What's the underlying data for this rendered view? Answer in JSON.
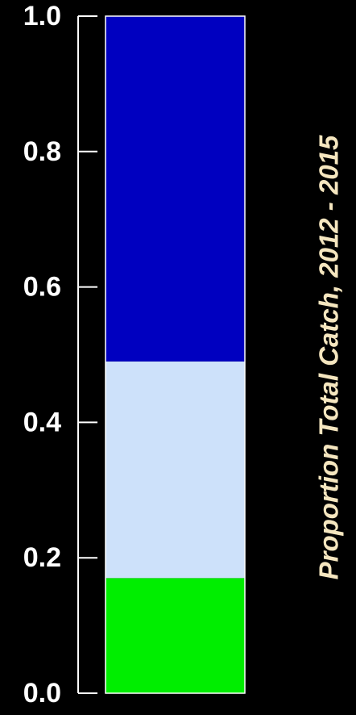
{
  "chart_data": {
    "type": "stacked-bar",
    "title": "",
    "xlabel": "",
    "ylabel": "Proportion Total Catch, 2012 - 2015",
    "ylim": [
      0,
      1
    ],
    "yticks": [
      "0.0",
      "0.2",
      "0.4",
      "0.6",
      "0.8",
      "1.0"
    ],
    "grid": false,
    "legend": "none",
    "background": "#000000",
    "axis_color": "#ffffff",
    "label_color": "#f5e6bf",
    "segments": [
      {
        "value": 0.17,
        "color": "#00ee00"
      },
      {
        "value": 0.32,
        "color": "#cde1fa"
      },
      {
        "value": 0.51,
        "color": "#0000c0"
      }
    ]
  }
}
